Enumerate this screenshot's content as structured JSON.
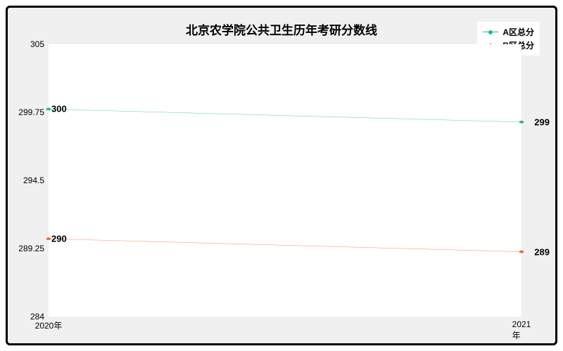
{
  "chart": {
    "type": "line",
    "title": "北京农学院公共卫生历年考研分数线",
    "title_fontsize": 17,
    "background_color": "#f0f0f0",
    "plot_background": "#ffffff",
    "border_color": "#000000",
    "x_categories": [
      "2020年",
      "2021年"
    ],
    "y_ticks": [
      284,
      289.25,
      294.5,
      299.75,
      305
    ],
    "ylim": [
      284,
      305
    ],
    "tick_fontsize": 12,
    "label_fontsize": 12,
    "data_label_fontsize": 13,
    "series": [
      {
        "name": "A区总分",
        "color": "#2bb59a",
        "values": [
          300,
          299
        ],
        "line_width": 1.5,
        "marker": "circle",
        "marker_size": 3
      },
      {
        "name": "B区总分",
        "color": "#e86c3a",
        "values": [
          290,
          289
        ],
        "line_width": 1.5,
        "marker": "circle",
        "marker_size": 3
      }
    ],
    "legend": {
      "position": "top-right",
      "fontsize": 12
    }
  }
}
